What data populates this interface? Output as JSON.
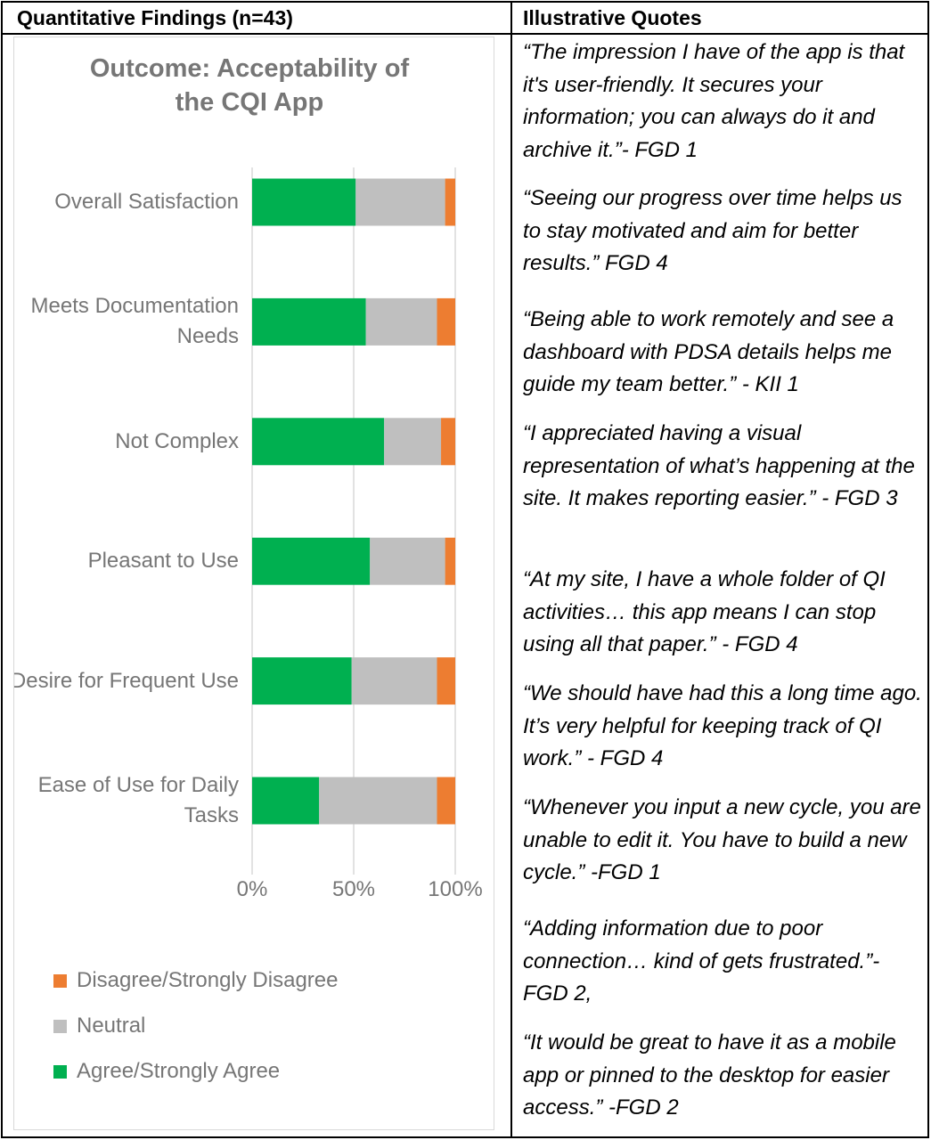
{
  "table": {
    "header_left": "Quantitative Findings (n=43)",
    "header_right": "Illustrative Quotes"
  },
  "chart_data": {
    "type": "bar",
    "orientation": "horizontal",
    "stacked": true,
    "percent_stacked": true,
    "title_lines": [
      "Outcome: Acceptability of",
      "the CQI App"
    ],
    "category_lines": [
      [
        "Overall Satisfaction"
      ],
      [
        "Meets Documentation",
        "Needs"
      ],
      [
        "Not Complex"
      ],
      [
        "Pleasant to Use"
      ],
      [
        "Desire for Frequent Use"
      ],
      [
        "Ease of Use for Daily",
        "Tasks"
      ]
    ],
    "x_tick_labels": [
      "0%",
      "50%",
      "100%"
    ],
    "xlim": [
      0,
      100
    ],
    "series": [
      {
        "name": "Agree/Strongly Agree",
        "color": "#00b050",
        "values": [
          51,
          56,
          65,
          58,
          49,
          33
        ]
      },
      {
        "name": "Neutral",
        "color": "#bfbfbf",
        "values": [
          44,
          35,
          28,
          37,
          42,
          58
        ]
      },
      {
        "name": "Disagree/Strongly Disagree",
        "color": "#ed7d31",
        "values": [
          5,
          9,
          7,
          5,
          9,
          9
        ]
      }
    ],
    "legend_order": [
      "Disagree/Strongly Disagree",
      "Neutral",
      "Agree/Strongly Agree"
    ],
    "legend_position": "bottom-left",
    "gridlines": true
  },
  "quotes": [
    "“The impression I have of the app is that it's user-friendly. It secures your information; you can always do it and archive it.”- FGD 1",
    "“Seeing our progress over time helps us to stay motivated and aim for better results.”  FGD 4",
    "“Being able to work remotely and see a dashboard with PDSA details helps me guide my team better.” - KII 1",
    "“I appreciated having a visual representation of what’s happening at the site. It makes reporting easier.” - FGD 3",
    "“At my site, I have a whole folder of QI activities… this app means I can stop using all that paper.” - FGD 4",
    "“We should have had this a long time ago. It’s very helpful for keeping track of QI work.” - FGD 4",
    "“Whenever you input a new cycle, you are unable to edit it. You have to build a new cycle.” -FGD 1",
    "“Adding information due to poor connection… kind of gets frustrated.”- FGD 2,",
    "“It would be great to have it as a mobile app or pinned to the desktop for easier access.” -FGD 2"
  ]
}
